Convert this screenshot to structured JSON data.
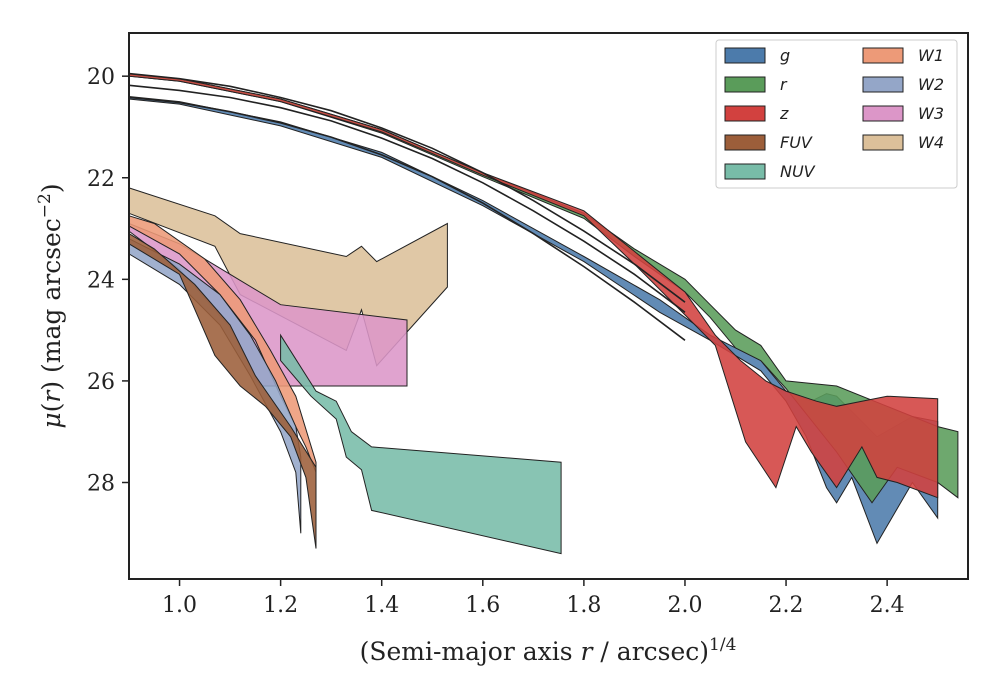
{
  "chart_data": {
    "type": "area",
    "xlabel": "(Semi-major axis r / arcsec)^1/4",
    "xlabel_parts": {
      "prefix": "(Semi-major axis ",
      "var": "r",
      "mid": " / arcsec)",
      "sup": "1/4"
    },
    "ylabel": "μ(r) (mag arcsec^−2)",
    "ylabel_parts": {
      "mu": "μ",
      "open": "(",
      "var": "r",
      "close": ") (mag arcsec",
      "sup": "−2",
      "end": ")"
    },
    "xlim": [
      0.9,
      2.56
    ],
    "ylim": [
      29.9,
      19.15
    ],
    "y_inverted": true,
    "x_ticks": [
      "1.0",
      "1.2",
      "1.4",
      "1.6",
      "1.8",
      "2.0",
      "2.2",
      "2.4"
    ],
    "x_tick_values": [
      1.0,
      1.2,
      1.4,
      1.6,
      1.8,
      2.0,
      2.2,
      2.4
    ],
    "y_ticks": [
      "20",
      "22",
      "24",
      "26",
      "28"
    ],
    "y_tick_values": [
      20,
      22,
      24,
      26,
      28
    ],
    "grid": false,
    "legend_placement": "top-right",
    "legend_columns": 2,
    "model_curves": [
      {
        "x": [
          0.9,
          1.0,
          1.1,
          1.2,
          1.3,
          1.4,
          1.5,
          1.6,
          1.7,
          1.8,
          1.9,
          2.0
        ],
        "y": [
          19.95,
          20.05,
          20.2,
          20.42,
          20.68,
          21.02,
          21.42,
          21.9,
          22.45,
          23.05,
          23.7,
          24.45
        ]
      },
      {
        "x": [
          0.9,
          1.0,
          1.1,
          1.2,
          1.3,
          1.4,
          1.5,
          1.6,
          1.7,
          1.8,
          1.9,
          2.0
        ],
        "y": [
          20.18,
          20.28,
          20.42,
          20.62,
          20.88,
          21.22,
          21.62,
          22.1,
          22.65,
          23.25,
          23.9,
          24.65
        ]
      },
      {
        "x": [
          0.9,
          1.0,
          1.1,
          1.2,
          1.3,
          1.4,
          1.5,
          1.6,
          1.7,
          1.8,
          1.9,
          2.0
        ],
        "y": [
          20.42,
          20.52,
          20.7,
          20.92,
          21.2,
          21.55,
          21.98,
          22.5,
          23.1,
          23.75,
          24.45,
          25.2
        ]
      }
    ],
    "series": [
      {
        "name": "W4",
        "color": "#dcc09a",
        "upper": {
          "x": [
            0.9,
            1.07,
            1.12,
            1.33,
            1.36,
            1.39,
            1.53
          ],
          "y": [
            22.2,
            22.75,
            23.1,
            23.55,
            23.35,
            23.65,
            22.9
          ]
        },
        "lower": {
          "x": [
            0.9,
            1.07,
            1.12,
            1.33,
            1.36,
            1.39,
            1.53
          ],
          "y": [
            22.7,
            23.35,
            24.3,
            25.4,
            24.6,
            25.7,
            24.15
          ]
        }
      },
      {
        "name": "W3",
        "color": "#dc96c8",
        "upper": {
          "x": [
            0.9,
            1.0,
            1.1,
            1.2,
            1.45
          ],
          "y": [
            22.9,
            23.3,
            23.9,
            24.5,
            24.8
          ]
        },
        "lower": {
          "x": [
            0.9,
            1.0,
            1.1,
            1.16,
            1.45
          ],
          "y": [
            23.05,
            23.8,
            24.95,
            26.1,
            26.1
          ]
        }
      },
      {
        "name": "W1",
        "color": "#ed9a78",
        "upper": {
          "x": [
            0.9,
            0.95,
            1.05,
            1.12,
            1.18,
            1.23,
            1.27
          ],
          "y": [
            22.75,
            22.9,
            23.6,
            24.4,
            25.4,
            26.3,
            27.6
          ]
        },
        "lower": {
          "x": [
            0.9,
            1.0,
            1.08,
            1.15,
            1.2,
            1.25,
            1.27
          ],
          "y": [
            22.95,
            23.5,
            24.3,
            25.2,
            26.3,
            27.3,
            27.8
          ]
        }
      },
      {
        "name": "W2",
        "color": "#94a6c8",
        "upper": {
          "x": [
            0.9,
            1.0,
            1.08,
            1.14,
            1.19,
            1.23,
            1.24
          ],
          "y": [
            23.2,
            23.7,
            24.3,
            25.1,
            26.0,
            26.9,
            27.5
          ]
        },
        "lower": {
          "x": [
            0.9,
            1.0,
            1.08,
            1.14,
            1.2,
            1.23,
            1.24
          ],
          "y": [
            23.5,
            24.1,
            24.9,
            25.9,
            27.0,
            27.8,
            29.0
          ]
        }
      },
      {
        "name": "FUV",
        "color": "#9c5e3a",
        "upper": {
          "x": [
            0.9,
            0.95,
            1.03,
            1.1,
            1.15,
            1.22,
            1.27
          ],
          "y": [
            23.1,
            23.4,
            24.1,
            24.9,
            25.9,
            26.9,
            27.7
          ]
        },
        "lower": {
          "x": [
            0.9,
            1.0,
            1.07,
            1.12,
            1.17,
            1.22,
            1.25,
            1.27
          ],
          "y": [
            23.3,
            23.9,
            25.5,
            26.1,
            26.5,
            27.1,
            27.9,
            29.3
          ]
        }
      },
      {
        "name": "NUV",
        "color": "#78bca8",
        "upper": {
          "x": [
            1.2,
            1.27,
            1.31,
            1.34,
            1.38,
            1.755
          ],
          "y": [
            25.1,
            26.2,
            26.4,
            27.0,
            27.3,
            27.6
          ]
        },
        "lower": {
          "x": [
            1.2,
            1.26,
            1.31,
            1.33,
            1.36,
            1.38,
            1.755
          ],
          "y": [
            25.6,
            26.3,
            26.75,
            27.5,
            27.75,
            28.55,
            29.4
          ]
        }
      },
      {
        "name": "g",
        "color": "#4c7bab",
        "upper": {
          "x": [
            0.9,
            1.0,
            1.2,
            1.4,
            1.6,
            1.8,
            1.95,
            2.05,
            2.15,
            2.2,
            2.25,
            2.28,
            2.3,
            2.35,
            2.38,
            2.45,
            2.5
          ],
          "y": [
            20.4,
            20.5,
            20.9,
            21.5,
            22.45,
            23.55,
            24.4,
            25.1,
            25.6,
            26.2,
            26.4,
            26.25,
            26.3,
            26.8,
            27.1,
            26.7,
            26.8
          ]
        },
        "lower": {
          "x": [
            0.9,
            1.0,
            1.2,
            1.4,
            1.6,
            1.8,
            1.95,
            2.05,
            2.15,
            2.2,
            2.24,
            2.28,
            2.3,
            2.33,
            2.38,
            2.45,
            2.5
          ],
          "y": [
            20.45,
            20.55,
            20.98,
            21.6,
            22.55,
            23.65,
            24.65,
            25.2,
            25.8,
            26.4,
            27.1,
            28.1,
            28.4,
            27.9,
            29.2,
            28.0,
            28.7
          ]
        }
      },
      {
        "name": "r",
        "color": "#5a9c5a",
        "upper": {
          "x": [
            0.9,
            1.0,
            1.2,
            1.4,
            1.6,
            1.8,
            1.9,
            2.0,
            2.05,
            2.1,
            2.15,
            2.2,
            2.3,
            2.4,
            2.5,
            2.54
          ],
          "y": [
            19.95,
            20.05,
            20.45,
            21.05,
            21.9,
            22.7,
            23.4,
            24.0,
            24.5,
            25.0,
            25.3,
            26.0,
            26.1,
            26.5,
            26.9,
            27.0
          ]
        },
        "lower": {
          "x": [
            0.9,
            1.0,
            1.2,
            1.4,
            1.6,
            1.8,
            1.9,
            2.0,
            2.05,
            2.1,
            2.15,
            2.2,
            2.3,
            2.37,
            2.42,
            2.5,
            2.54
          ],
          "y": [
            20.0,
            20.1,
            20.5,
            21.12,
            21.98,
            22.8,
            23.55,
            24.25,
            24.75,
            25.35,
            25.6,
            26.15,
            27.4,
            28.4,
            27.7,
            28.0,
            28.3
          ]
        }
      },
      {
        "name": "z",
        "color": "#d2413f",
        "upper": {
          "x": [
            0.9,
            1.0,
            1.2,
            1.4,
            1.6,
            1.8,
            1.9,
            2.0,
            2.06,
            2.11,
            2.16,
            2.2,
            2.26,
            2.3,
            2.35,
            2.4,
            2.5
          ],
          "y": [
            19.95,
            20.05,
            20.45,
            21.05,
            21.9,
            22.65,
            23.45,
            24.25,
            25.1,
            25.6,
            26.0,
            26.2,
            26.4,
            26.5,
            26.4,
            26.3,
            26.35
          ]
        },
        "lower": {
          "x": [
            0.9,
            1.0,
            1.2,
            1.4,
            1.6,
            1.8,
            1.9,
            2.0,
            2.06,
            2.12,
            2.18,
            2.22,
            2.25,
            2.3,
            2.35,
            2.38,
            2.42,
            2.5
          ],
          "y": [
            20.0,
            20.1,
            20.5,
            21.1,
            21.95,
            22.75,
            23.7,
            24.7,
            25.3,
            27.2,
            28.1,
            26.9,
            27.4,
            28.1,
            27.3,
            27.9,
            28.0,
            28.3
          ]
        }
      }
    ],
    "legend_order": [
      "g",
      "r",
      "z",
      "FUV",
      "NUV",
      "W1",
      "W2",
      "W3",
      "W4"
    ]
  }
}
